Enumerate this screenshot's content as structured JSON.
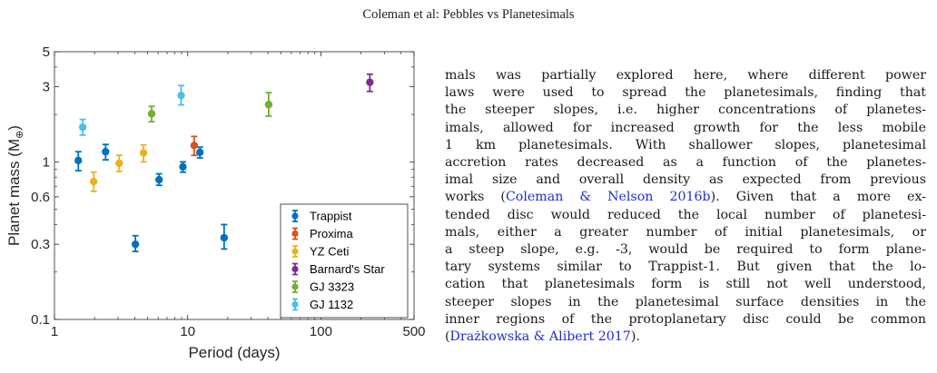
{
  "header": {
    "running_head": "Coleman et al: Pebbles vs Planetesimals"
  },
  "chart_data": {
    "type": "scatter",
    "xlabel": "Period (days)",
    "ylabel": "Planet mass (M⊕)",
    "ylabel_main": "Planet mass (M",
    "ylabel_sub": "⊕",
    "ylabel_close": ")",
    "x_scale": "log",
    "y_scale": "log",
    "xlim": [
      1,
      500
    ],
    "ylim": [
      0.1,
      5
    ],
    "xticks": [
      1,
      10,
      100,
      500
    ],
    "xtick_labels": [
      "1",
      "10",
      "100",
      "500"
    ],
    "yticks": [
      0.1,
      0.3,
      0.6,
      1,
      3,
      5
    ],
    "ytick_labels": [
      "0.1",
      "0.3",
      "0.6",
      "1",
      "3",
      "5"
    ],
    "grid": false,
    "legend_position": "lower-right",
    "series": [
      {
        "name": "Trappist",
        "color": "#0072BD",
        "points": [
          {
            "x": 1.51,
            "y": 1.02,
            "lo": 0.88,
            "hi": 1.16
          },
          {
            "x": 2.42,
            "y": 1.16,
            "lo": 1.03,
            "hi": 1.29
          },
          {
            "x": 4.05,
            "y": 0.3,
            "lo": 0.27,
            "hi": 0.34
          },
          {
            "x": 6.1,
            "y": 0.77,
            "lo": 0.71,
            "hi": 0.84
          },
          {
            "x": 9.21,
            "y": 0.93,
            "lo": 0.86,
            "hi": 1.0
          },
          {
            "x": 12.35,
            "y": 1.15,
            "lo": 1.06,
            "hi": 1.24
          },
          {
            "x": 18.77,
            "y": 0.33,
            "lo": 0.28,
            "hi": 0.4
          }
        ]
      },
      {
        "name": "Proxima",
        "color": "#D95319",
        "points": [
          {
            "x": 11.19,
            "y": 1.27,
            "lo": 1.1,
            "hi": 1.45
          }
        ]
      },
      {
        "name": "YZ Ceti",
        "color": "#EDB120",
        "points": [
          {
            "x": 1.97,
            "y": 0.75,
            "lo": 0.65,
            "hi": 0.86
          },
          {
            "x": 3.06,
            "y": 0.98,
            "lo": 0.87,
            "hi": 1.1
          },
          {
            "x": 4.66,
            "y": 1.14,
            "lo": 1.0,
            "hi": 1.28
          }
        ]
      },
      {
        "name": "Barnard's Star",
        "color": "#7E2F8E",
        "points": [
          {
            "x": 233,
            "y": 3.2,
            "lo": 2.8,
            "hi": 3.6
          }
        ]
      },
      {
        "name": "GJ 3323",
        "color": "#77AC30",
        "points": [
          {
            "x": 5.36,
            "y": 2.02,
            "lo": 1.8,
            "hi": 2.25
          },
          {
            "x": 40.54,
            "y": 2.31,
            "lo": 1.95,
            "hi": 2.75
          }
        ]
      },
      {
        "name": "GJ 1132",
        "color": "#4DBEEE",
        "points": [
          {
            "x": 1.63,
            "y": 1.66,
            "lo": 1.48,
            "hi": 1.86
          },
          {
            "x": 8.93,
            "y": 2.64,
            "lo": 2.3,
            "hi": 3.05
          }
        ]
      }
    ]
  },
  "body_text": {
    "lines": [
      {
        "text": "mals was partially explored here, where different power"
      },
      {
        "text": "laws were used to spread the planetesimals, finding that"
      },
      {
        "text": "the steeper slopes, i.e. higher concentrations of planetes-"
      },
      {
        "text": "imals, allowed for increased growth for the less mobile"
      },
      {
        "text": "1 km planetesimals. With shallower slopes, planetesimal"
      },
      {
        "text": "accretion rates decreased as a function of the planetes-"
      },
      {
        "text": "imal size and overall density as expected from previous"
      },
      {
        "text": "works (",
        "cite": "Coleman & Nelson 2016b",
        "after": "). Given that a more ex-"
      },
      {
        "text": "tended disc would reduced the local number of planetesi-"
      },
      {
        "text": "mals, either a greater number of initial planetesimals, or"
      },
      {
        "text": "a steep slope, e.g. -3, would be required to form plane-"
      },
      {
        "text": "tary systems similar to Trappist-1. But given that the lo-"
      },
      {
        "text": "cation that planetesimals form is still not well understood,"
      },
      {
        "text": "steeper slopes in the planetesimal surface densities in the"
      },
      {
        "text": "inner regions of the protoplanetary disc could be common"
      },
      {
        "text": "(",
        "cite": "Drażkowska & Alibert 2017",
        "after": ")."
      }
    ]
  }
}
